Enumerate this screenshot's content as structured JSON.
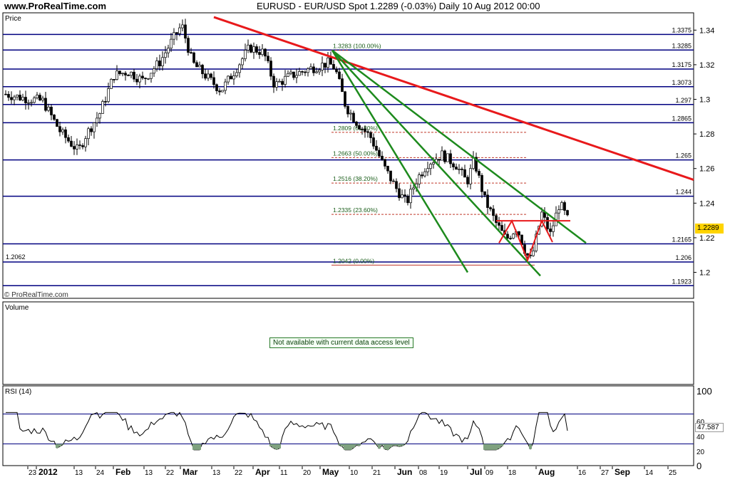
{
  "header": {
    "site": "www.ProRealTime.com",
    "title": "EURUSD - EUR/USD Spot    1.2289 (-0.03%)    Daily  10 Aug 2012 00:00"
  },
  "panels": {
    "price_label": "Price",
    "copyright": "© ProRealTime.com",
    "volume_label": "Volume",
    "volume_notice": "Not available with current data access level",
    "rsi_label": "RSI (14)"
  },
  "colors": {
    "candle_up": "#ffffff",
    "candle_down": "#000000",
    "hline": "#000080",
    "trendline": "#e8191b",
    "fan": "#1d8a1d",
    "fib": "#c0392b",
    "current_badge": "#ffd400",
    "rsi_fill": "#7fa27f"
  },
  "chart_data": [
    {
      "type": "candlestick",
      "ylim": [
        1.185,
        1.35
      ],
      "y_ticks": [
        "1.34",
        "1.32",
        "1.3",
        "1.28",
        "1.26",
        "1.24",
        "1.22",
        "1.2"
      ],
      "x_ticks": [
        "23",
        "2012",
        "13",
        "24",
        "Feb",
        "13",
        "22",
        "Mar",
        "13",
        "22",
        "Apr",
        "11",
        "20",
        "May",
        "10",
        "21",
        "Jun",
        "08",
        "19",
        "Jul",
        "09",
        "18",
        "Aug",
        "16",
        "27",
        "Sep",
        "14",
        "25"
      ],
      "current_price": "1.2289",
      "horizontal_levels": [
        {
          "value": 1.3375,
          "label": "1.3375"
        },
        {
          "value": 1.3285,
          "label": "1.3285"
        },
        {
          "value": 1.3175,
          "label": "1.3175"
        },
        {
          "value": 1.3073,
          "label": "1.3073"
        },
        {
          "value": 1.297,
          "label": "1.297"
        },
        {
          "value": 1.2865,
          "label": "1.2865"
        },
        {
          "value": 1.265,
          "label": "1.265"
        },
        {
          "value": 1.244,
          "label": "1.244"
        },
        {
          "value": 1.2165,
          "label": "1.2165"
        },
        {
          "value": 1.206,
          "label": "1.206"
        },
        {
          "value": 1.1923,
          "label": "1.1923"
        }
      ],
      "left_level_label": "1.2062",
      "fibonacci": [
        {
          "value": 1.3283,
          "label": "1.3283 (100.00%)"
        },
        {
          "value": 1.2809,
          "label": "1.2809 (61.80%)"
        },
        {
          "value": 1.2663,
          "label": "1.2663 (50.00%)"
        },
        {
          "value": 1.2516,
          "label": "1.2516 (38.20%)"
        },
        {
          "value": 1.2335,
          "label": "1.2335 (23.60%)"
        },
        {
          "value": 1.2042,
          "label": "1.2042 (0.00%)"
        }
      ]
    },
    {
      "type": "line",
      "name": "RSI (14)",
      "ylim": [
        0,
        100
      ],
      "y_ticks": [
        "100",
        "60",
        "40",
        "20",
        "0"
      ],
      "levels": [
        70,
        30
      ],
      "last_value": "47.587"
    }
  ]
}
